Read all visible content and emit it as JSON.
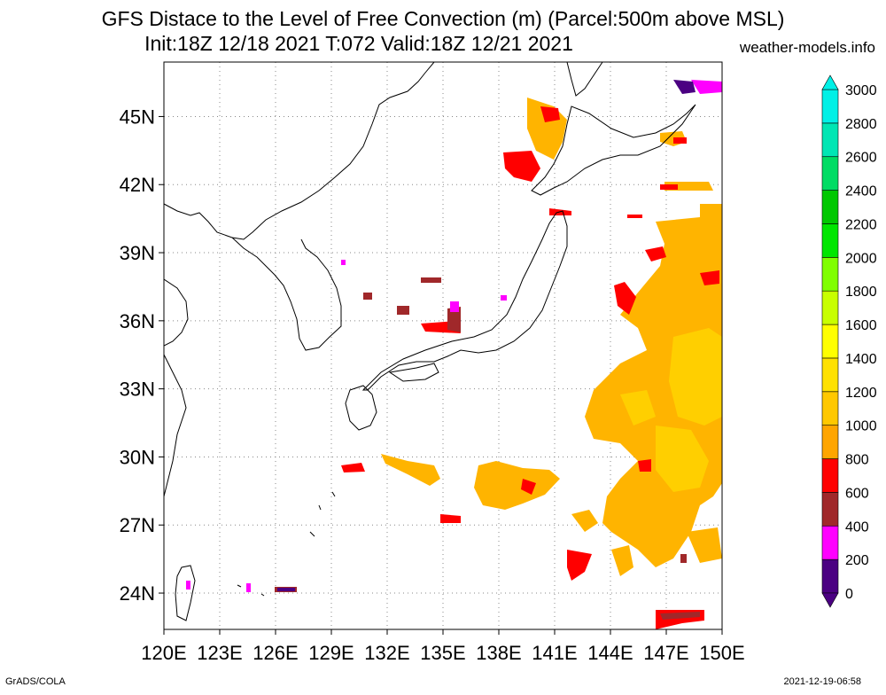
{
  "title_line1": "GFS Distace to the Level of Free Convection (m) (Parcel:500m above MSL)",
  "title_line2": "Init:18Z 12/18 2021 T:072 Valid:18Z 12/21 2021",
  "credit": "weather-models.info",
  "footer_left": "GrADS/COLA",
  "footer_right": "2021-12-19-06:58",
  "lat_labels": [
    "45N",
    "42N",
    "39N",
    "36N",
    "33N",
    "30N",
    "27N",
    "24N"
  ],
  "lat_values": [
    45,
    42,
    39,
    36,
    33,
    30,
    27,
    24
  ],
  "lon_labels": [
    "120E",
    "123E",
    "126E",
    "129E",
    "132E",
    "135E",
    "138E",
    "141E",
    "144E",
    "147E",
    "150E"
  ],
  "lon_values": [
    120,
    123,
    126,
    129,
    132,
    135,
    138,
    141,
    144,
    147,
    150
  ],
  "colorbar": {
    "labels": [
      "0",
      "200",
      "400",
      "600",
      "800",
      "1000",
      "1200",
      "1400",
      "1600",
      "1800",
      "2000",
      "2200",
      "2400",
      "2600",
      "2800",
      "3000"
    ],
    "colors": [
      "#4b0082",
      "#ff00ff",
      "#a0282a",
      "#ff0000",
      "#ffa500",
      "#ffc800",
      "#ffe100",
      "#ffff00",
      "#c8ff00",
      "#80ff00",
      "#00e600",
      "#00c800",
      "#00dc64",
      "#00e6b4",
      "#00f0e6"
    ]
  }
}
